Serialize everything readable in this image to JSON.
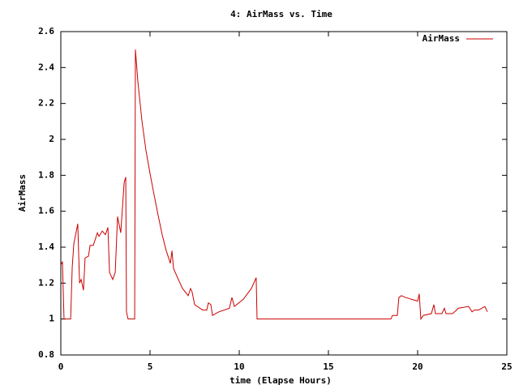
{
  "chart_data": {
    "type": "line",
    "title": "4: AirMass vs. Time",
    "x_label": "time (Elapse Hours)",
    "y_label": "AirMass",
    "x": [
      0,
      0.09,
      0.18,
      0.55,
      0.64,
      0.73,
      0.95,
      1.05,
      1.14,
      1.27,
      1.36,
      1.55,
      1.64,
      1.82,
      2.05,
      2.14,
      2.32,
      2.5,
      2.64,
      2.73,
      2.91,
      3.05,
      3.18,
      3.36,
      3.55,
      3.64,
      3.68,
      3.77,
      4.14,
      4.18,
      4.32,
      4.55,
      4.77,
      5.0,
      5.23,
      5.45,
      5.68,
      5.91,
      6.14,
      6.23,
      6.32,
      6.59,
      6.82,
      7.14,
      7.27,
      7.36,
      7.5,
      7.95,
      8.18,
      8.27,
      8.41,
      8.5,
      8.86,
      9.45,
      9.59,
      9.73,
      10.23,
      10.68,
      10.95,
      11.0,
      18.5,
      18.59,
      18.86,
      18.95,
      19.09,
      19.32,
      20.0,
      20.09,
      20.18,
      20.32,
      20.77,
      20.91,
      21.0,
      21.36,
      21.5,
      21.59,
      21.95,
      22.18,
      22.27,
      22.86,
      23.05,
      23.18,
      23.41,
      23.77,
      23.91
    ],
    "series": [
      {
        "name": "AirMass",
        "color": "#cc0000",
        "values": [
          1.3,
          1.32,
          1.0,
          1.0,
          1.29,
          1.42,
          1.53,
          1.2,
          1.22,
          1.16,
          1.34,
          1.35,
          1.41,
          1.41,
          1.48,
          1.46,
          1.49,
          1.47,
          1.51,
          1.26,
          1.22,
          1.26,
          1.57,
          1.48,
          1.76,
          1.79,
          1.04,
          1.0,
          1.0,
          2.5,
          2.32,
          2.1,
          1.94,
          1.81,
          1.69,
          1.58,
          1.47,
          1.38,
          1.31,
          1.38,
          1.28,
          1.22,
          1.17,
          1.13,
          1.17,
          1.15,
          1.08,
          1.05,
          1.05,
          1.09,
          1.08,
          1.02,
          1.04,
          1.06,
          1.12,
          1.07,
          1.11,
          1.17,
          1.23,
          1.0,
          1.0,
          1.02,
          1.02,
          1.12,
          1.13,
          1.12,
          1.1,
          1.14,
          1.0,
          1.02,
          1.03,
          1.08,
          1.03,
          1.03,
          1.06,
          1.03,
          1.03,
          1.05,
          1.06,
          1.07,
          1.04,
          1.05,
          1.05,
          1.07,
          1.04
        ]
      }
    ],
    "xlim": [
      0,
      25
    ],
    "xticks": [
      0,
      5,
      10,
      15,
      20,
      25
    ],
    "ylim": [
      0.8,
      2.6
    ],
    "yticks": [
      0.8,
      1,
      1.2,
      1.4,
      1.6,
      1.8,
      2,
      2.2,
      2.4,
      2.6
    ],
    "grid": false,
    "legend": "top-right"
  }
}
